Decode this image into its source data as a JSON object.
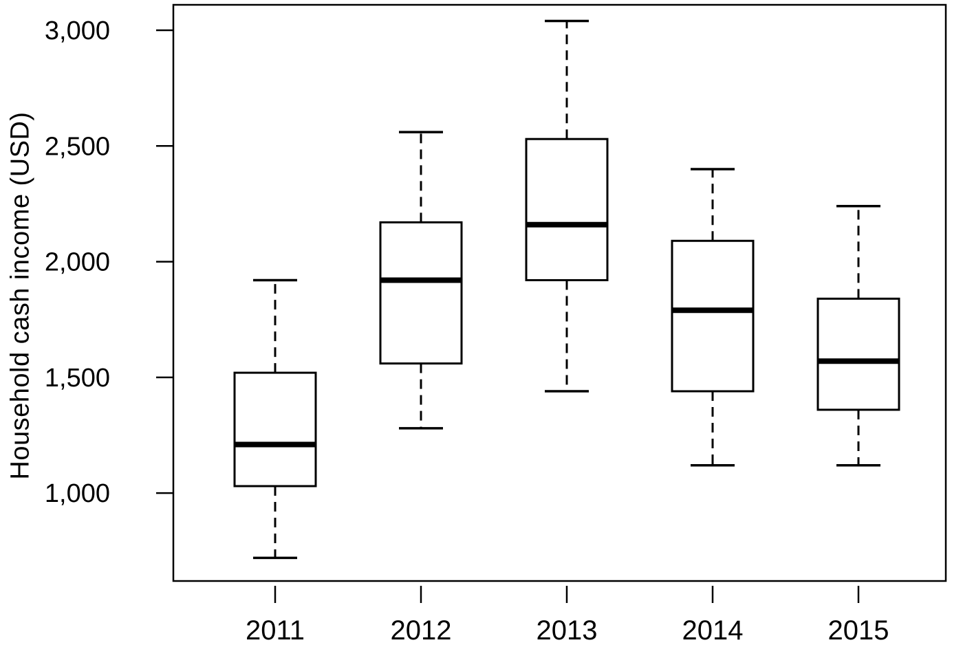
{
  "figure": {
    "background": "#ffffff",
    "ink_color": "#000000"
  },
  "chart_data": {
    "type": "boxplot",
    "title": "",
    "xlabel": "",
    "ylabel": "Household cash income (USD)",
    "categories": [
      "2011",
      "2012",
      "2013",
      "2014",
      "2015"
    ],
    "yticks": [
      1000,
      1500,
      2000,
      2500,
      3000
    ],
    "ytick_labels": [
      "1,000",
      "1,500",
      "2,000",
      "2,500",
      "3,000"
    ],
    "ylim": [
      620,
      3110
    ],
    "grid": false,
    "legend": false,
    "whisker_style": "dashed",
    "series": [
      {
        "category": "2011",
        "whisker_low": 720,
        "q1": 1030,
        "median": 1210,
        "q3": 1520,
        "whisker_high": 1920
      },
      {
        "category": "2012",
        "whisker_low": 1280,
        "q1": 1560,
        "median": 1920,
        "q3": 2170,
        "whisker_high": 2560
      },
      {
        "category": "2013",
        "whisker_low": 1440,
        "q1": 1920,
        "median": 2160,
        "q3": 2530,
        "whisker_high": 3040
      },
      {
        "category": "2014",
        "whisker_low": 1120,
        "q1": 1440,
        "median": 1790,
        "q3": 2090,
        "whisker_high": 2400
      },
      {
        "category": "2015",
        "whisker_low": 1120,
        "q1": 1360,
        "median": 1570,
        "q3": 1840,
        "whisker_high": 2240
      }
    ]
  }
}
